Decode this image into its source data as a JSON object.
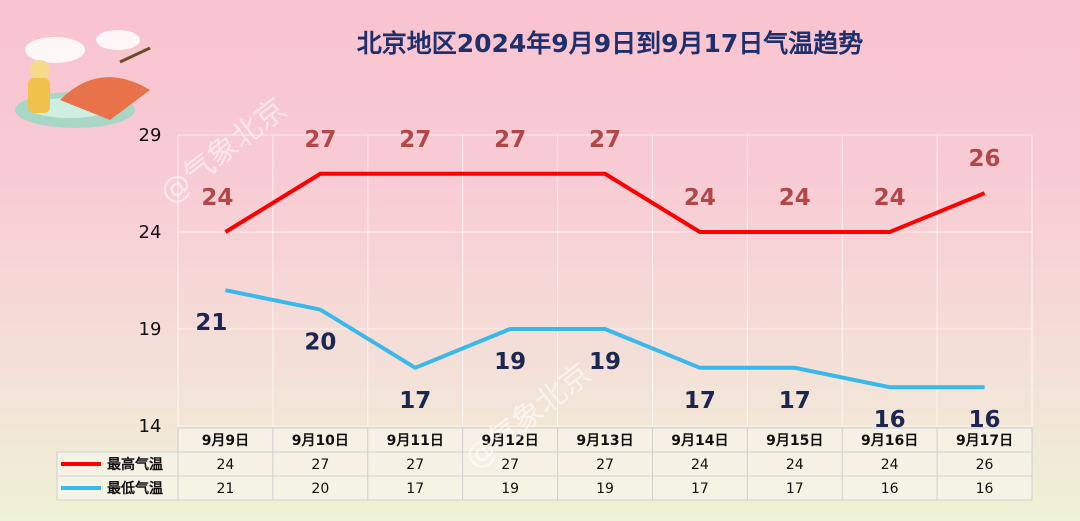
{
  "watermark": "@气象北京",
  "colors": {
    "high": "#ff0000",
    "low": "#3ab8ea"
  },
  "chart_data": {
    "type": "line",
    "title": "北京地区2024年9月9日到9月17日气温趋势",
    "categories": [
      "9月9日",
      "9月10日",
      "9月11日",
      "9月12日",
      "9月13日",
      "9月14日",
      "9月15日",
      "9月16日",
      "9月17日"
    ],
    "series": [
      {
        "name": "最高气温",
        "values": [
          24,
          27,
          27,
          27,
          27,
          24,
          24,
          24,
          26
        ]
      },
      {
        "name": "最低气温",
        "values": [
          21,
          20,
          17,
          19,
          19,
          17,
          17,
          16,
          16
        ]
      }
    ],
    "yticks": [
      14,
      19,
      24,
      29
    ],
    "ylim": [
      14,
      29
    ],
    "grid": true,
    "legend": "data-table"
  }
}
